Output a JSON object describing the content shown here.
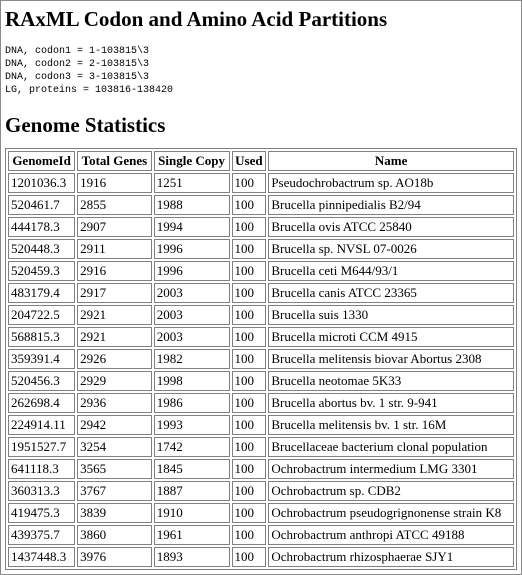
{
  "title": "RAxML Codon and Amino Acid Partitions",
  "partitions": [
    "DNA, codon1 = 1-103815\\3",
    "DNA, codon2 = 2-103815\\3",
    "DNA, codon3 = 3-103815\\3",
    "LG, proteins = 103816-138420"
  ],
  "stats_heading": "Genome Statistics",
  "table": {
    "headers": [
      "GenomeId",
      "Total Genes",
      "Single Copy",
      "Used",
      "Name"
    ],
    "rows": [
      [
        "1201036.3",
        "1916",
        "1251",
        "100",
        "Pseudochrobactrum sp. AO18b"
      ],
      [
        "520461.7",
        "2855",
        "1988",
        "100",
        "Brucella pinnipedialis B2/94"
      ],
      [
        "444178.3",
        "2907",
        "1994",
        "100",
        "Brucella ovis ATCC 25840"
      ],
      [
        "520448.3",
        "2911",
        "1996",
        "100",
        "Brucella sp. NVSL 07-0026"
      ],
      [
        "520459.3",
        "2916",
        "1996",
        "100",
        "Brucella ceti M644/93/1"
      ],
      [
        "483179.4",
        "2917",
        "2003",
        "100",
        "Brucella canis ATCC 23365"
      ],
      [
        "204722.5",
        "2921",
        "2003",
        "100",
        "Brucella suis 1330"
      ],
      [
        "568815.3",
        "2921",
        "2003",
        "100",
        "Brucella microti CCM 4915"
      ],
      [
        "359391.4",
        "2926",
        "1982",
        "100",
        "Brucella melitensis biovar Abortus 2308"
      ],
      [
        "520456.3",
        "2929",
        "1998",
        "100",
        "Brucella neotomae 5K33"
      ],
      [
        "262698.4",
        "2936",
        "1986",
        "100",
        "Brucella abortus bv. 1 str. 9-941"
      ],
      [
        "224914.11",
        "2942",
        "1993",
        "100",
        "Brucella melitensis bv. 1 str. 16M"
      ],
      [
        "1951527.7",
        "3254",
        "1742",
        "100",
        "Brucellaceae bacterium clonal population"
      ],
      [
        "641118.3",
        "3565",
        "1845",
        "100",
        "Ochrobactrum intermedium LMG 3301"
      ],
      [
        "360313.3",
        "3767",
        "1887",
        "100",
        "Ochrobactrum sp. CDB2"
      ],
      [
        "419475.3",
        "3839",
        "1910",
        "100",
        "Ochrobactrum pseudogrignonense strain K8"
      ],
      [
        "439375.7",
        "3860",
        "1961",
        "100",
        "Ochrobactrum anthropi ATCC 49188"
      ],
      [
        "1437448.3",
        "3976",
        "1893",
        "100",
        "Ochrobactrum rhizosphaerae SJY1"
      ]
    ]
  }
}
